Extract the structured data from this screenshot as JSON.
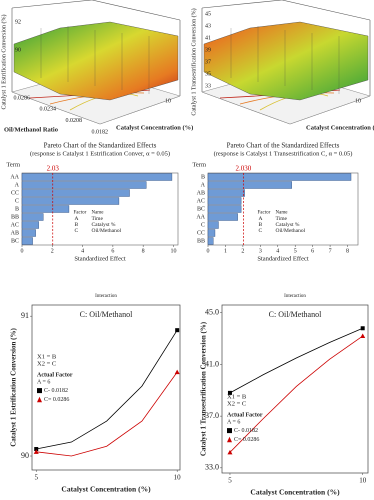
{
  "chart_data": [
    {
      "type": "surface",
      "zlabel": "Catalyst 1 Estrification Conversion (%)",
      "zticks": [
        90,
        92
      ],
      "xlabel": "Catalyst Concentration (%)",
      "xticks": [
        10
      ],
      "ylabel": "Oil/Methanol Ratio",
      "yticks": [
        0.0286,
        0.0234,
        0.0208,
        0.0182
      ]
    },
    {
      "type": "surface",
      "zlabel": "Catalyst 1 Transestrification Conversion (%)",
      "zticks": [
        33,
        35,
        37,
        39,
        41,
        43,
        45
      ],
      "xlabel": "Catalyst Concentration (%)",
      "xticks": [
        10
      ]
    },
    {
      "type": "pareto",
      "title": "Pareto Chart of the Standardized Effects",
      "subtitle": "(response is Catalyst 1 Estrification Conver, α = 0.05)",
      "ylabel": "Term",
      "xlabel": "Standardized Effect",
      "reference": 2.03,
      "categories": [
        "AA",
        "A",
        "CC",
        "C",
        "B",
        "BB",
        "AC",
        "AB",
        "BC"
      ],
      "values": [
        9.9,
        8.2,
        7.1,
        6.4,
        3.1,
        1.4,
        1.1,
        0.9,
        0.7
      ],
      "color": "#6f9bd6",
      "xlim": [
        0,
        10.3
      ],
      "xticks": [
        0,
        2,
        4,
        6,
        8,
        10
      ],
      "legend_table": {
        "header": [
          "Factor",
          "Name"
        ],
        "rows": [
          [
            "A",
            "Time"
          ],
          [
            "B",
            "Catalyst %"
          ],
          [
            "C",
            "Oil/Methanol"
          ]
        ]
      }
    },
    {
      "type": "pareto",
      "title": "Pareto Chart of the Standardized Effects",
      "subtitle": "(response is Catalyst 1 Transestrification C, α = 0.05)",
      "ylabel": "Term",
      "xlabel": "Standardized Effect",
      "reference": {
        "value": 2.03,
        "label": "2.030"
      },
      "categories": [
        "B",
        "A",
        "AB",
        "AC",
        "BC",
        "AA",
        "C",
        "CC",
        "BB"
      ],
      "values": [
        8.2,
        4.8,
        2.1,
        1.9,
        1.9,
        1.7,
        0.6,
        0.4,
        0.3
      ],
      "color": "#6f9bd6",
      "xlim": [
        0,
        8.6
      ],
      "xticks": [
        0,
        1,
        2,
        3,
        4,
        5,
        6,
        7,
        8
      ],
      "legend_table": {
        "header": [
          "Factor",
          "Name"
        ],
        "rows": [
          [
            "A",
            "Time"
          ],
          [
            "B",
            "Catalyst %"
          ],
          [
            "C",
            "Oil/Methanol"
          ]
        ]
      }
    },
    {
      "type": "line",
      "header": "Interaction",
      "title": "C: Oil/Methanol",
      "ylabel": "Catalyst 1 Estrification Conversion (%)",
      "xlabel": "Catalyst Concentration (%)",
      "x": [
        5,
        6.25,
        7.5,
        8.75,
        10
      ],
      "xlim": [
        4.85,
        10.1
      ],
      "xticks": [
        5,
        10
      ],
      "ylim": [
        89.9,
        91.08
      ],
      "yticks": [
        90,
        91
      ],
      "legend_notes": [
        "X1 = B",
        "X2 = C"
      ],
      "legend_title": "Actual Factor",
      "legend_factor": "A = 6",
      "series": [
        {
          "name": "C- 0.0182",
          "color": "#000000",
          "marker": "square",
          "values": [
            90.05,
            90.1,
            90.25,
            90.5,
            90.9
          ]
        },
        {
          "name": "C= 0.0286",
          "color": "#cc0000",
          "marker": "triangle",
          "values": [
            90.03,
            90.0,
            90.07,
            90.25,
            90.6
          ]
        }
      ]
    },
    {
      "type": "line",
      "header": "Interaction",
      "title": "C: Oil/Methanol",
      "ylabel": "Catalyst 1 Transestrification Conversion (%)",
      "xlabel": "Catalyst Concentration (%)",
      "x": [
        5,
        6.25,
        7.5,
        8.75,
        10
      ],
      "xlim": [
        4.7,
        10.2
      ],
      "xticks": [
        5,
        10
      ],
      "ylim": [
        32.6,
        45.6
      ],
      "yticks": [
        {
          "value": 33,
          "label": "33.0"
        },
        {
          "value": 37,
          "label": "37.0"
        },
        {
          "value": 41,
          "label": "41.0"
        },
        {
          "value": 45,
          "label": "45.0"
        }
      ],
      "legend_notes": [
        "X1 = B",
        "X2 = C"
      ],
      "legend_title": "Actual Factor",
      "legend_factor": "A = 6",
      "series": [
        {
          "name": "C- 0.0182",
          "color": "#000000",
          "marker": "square",
          "values": [
            38.8,
            40.2,
            41.5,
            42.7,
            43.8
          ]
        },
        {
          "name": "C= 0.0286",
          "color": "#cc0000",
          "marker": "triangle",
          "values": [
            34.2,
            36.8,
            39.3,
            41.4,
            43.2
          ]
        }
      ]
    }
  ]
}
